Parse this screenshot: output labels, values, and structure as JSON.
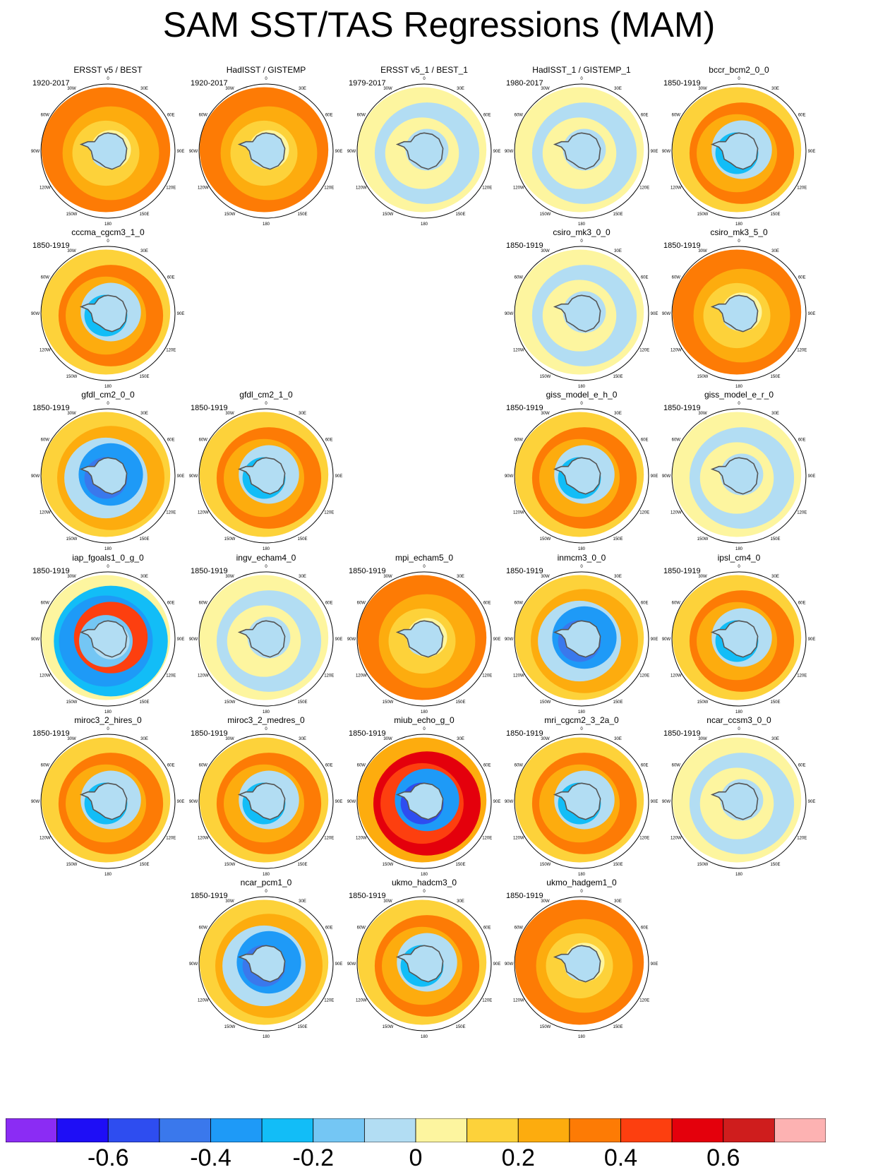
{
  "title": "SAM SST/TAS Regressions (MAM)",
  "lon_labels": [
    "0",
    "30E",
    "60E",
    "90E",
    "120E",
    "150E",
    "180",
    "150W",
    "120W",
    "90W",
    "60W",
    "30W"
  ],
  "panels": [
    {
      "title": "ERSST v5 / BEST",
      "period": "1920-2017",
      "pattern": "warm"
    },
    {
      "title": "HadISST / GISTEMP",
      "period": "1920-2017",
      "pattern": "warm"
    },
    {
      "title": "ERSST v5_1 / BEST_1",
      "period": "1979-2017",
      "pattern": "weak"
    },
    {
      "title": "HadISST_1 / GISTEMP_1",
      "period": "1980-2017",
      "pattern": "weak"
    },
    {
      "title": "bccr_bcm2_0_0",
      "period": "1850-1919",
      "pattern": "ring"
    },
    {
      "title": "cccma_cgcm3_1_0",
      "period": "1850-1919",
      "pattern": "ring"
    },
    null,
    null,
    {
      "title": "csiro_mk3_0_0",
      "period": "1850-1919",
      "pattern": "weak"
    },
    {
      "title": "csiro_mk3_5_0",
      "period": "1850-1919",
      "pattern": "warm"
    },
    {
      "title": "gfdl_cm2_0_0",
      "period": "1850-1919",
      "pattern": "cold"
    },
    {
      "title": "gfdl_cm2_1_0",
      "period": "1850-1919",
      "pattern": "ring"
    },
    null,
    {
      "title": "giss_model_e_h_0",
      "period": "1850-1919",
      "pattern": "ring"
    },
    {
      "title": "giss_model_e_r_0",
      "period": "1850-1919",
      "pattern": "weak"
    },
    {
      "title": "iap_fgoals1_0_g_0",
      "period": "1850-1919",
      "pattern": "spiral"
    },
    {
      "title": "ingv_echam4_0",
      "period": "1850-1919",
      "pattern": "weak"
    },
    {
      "title": "mpi_echam5_0",
      "period": "1850-1919",
      "pattern": "warm"
    },
    {
      "title": "inmcm3_0_0",
      "period": "1850-1919",
      "pattern": "cold"
    },
    {
      "title": "ipsl_cm4_0",
      "period": "1850-1919",
      "pattern": "ring"
    },
    {
      "title": "miroc3_2_hires_0",
      "period": "1850-1919",
      "pattern": "ring"
    },
    {
      "title": "miroc3_2_medres_0",
      "period": "1850-1919",
      "pattern": "ring"
    },
    {
      "title": "miub_echo_g_0",
      "period": "1850-1919",
      "pattern": "strong"
    },
    {
      "title": "mri_cgcm2_3_2a_0",
      "period": "1850-1919",
      "pattern": "ring"
    },
    {
      "title": "ncar_ccsm3_0_0",
      "period": "1850-1919",
      "pattern": "weak"
    },
    null,
    {
      "title": "ncar_pcm1_0",
      "period": "1850-1919",
      "pattern": "cold"
    },
    {
      "title": "ukmo_hadcm3_0",
      "period": "1850-1919",
      "pattern": "ring"
    },
    {
      "title": "ukmo_hadgem1_0",
      "period": "1850-1919",
      "pattern": "warm"
    },
    null
  ],
  "colorbar": {
    "colors": [
      "#8b2cf4",
      "#1e0ef6",
      "#2e4df0",
      "#3a78ec",
      "#1e9af7",
      "#12bdf7",
      "#74c6f4",
      "#b2ddf3",
      "#fdf59f",
      "#fdd23a",
      "#fdac0e",
      "#fd7b05",
      "#fd3f0f",
      "#e4000c",
      "#cf1d1d",
      "#fdb2b2"
    ],
    "labels": [
      "-0.6",
      "-0.4",
      "-0.2",
      "0",
      "0.2",
      "0.4",
      "0.6"
    ],
    "label_values": [
      -0.6,
      -0.4,
      -0.2,
      0,
      0.2,
      0.4,
      0.6
    ],
    "min": -0.8,
    "max": 0.8
  }
}
